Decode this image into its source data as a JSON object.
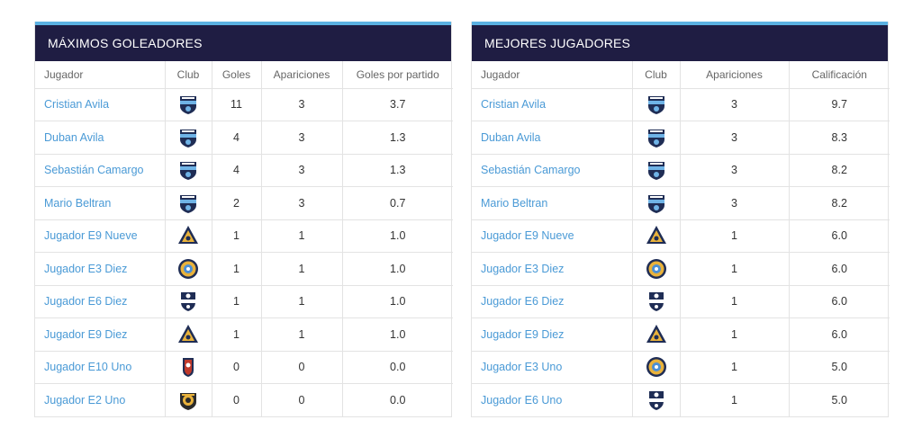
{
  "scorers": {
    "title": "MÁXIMOS GOLEADORES",
    "headers": [
      "Jugador",
      "Club",
      "Goles",
      "Apariciones",
      "Goles por partido"
    ],
    "rows": [
      {
        "player": "Cristian Avila",
        "crest": "shield-crest-icon",
        "goals": "11",
        "apps": "3",
        "gpm": "3.7"
      },
      {
        "player": "Duban Avila",
        "crest": "shield-crest-icon",
        "goals": "4",
        "apps": "3",
        "gpm": "1.3"
      },
      {
        "player": "Sebastián Camargo",
        "crest": "shield-crest-icon",
        "goals": "4",
        "apps": "3",
        "gpm": "1.3"
      },
      {
        "player": "Mario Beltran",
        "crest": "shield-crest-icon",
        "goals": "2",
        "apps": "3",
        "gpm": "0.7"
      },
      {
        "player": "Jugador E9 Nueve",
        "crest": "triangle-crest-icon",
        "goals": "1",
        "apps": "1",
        "gpm": "1.0"
      },
      {
        "player": "Jugador E3 Diez",
        "crest": "round-crest-icon",
        "goals": "1",
        "apps": "1",
        "gpm": "1.0"
      },
      {
        "player": "Jugador E6 Diez",
        "crest": "football-crest-icon",
        "goals": "1",
        "apps": "1",
        "gpm": "1.0"
      },
      {
        "player": "Jugador E9 Diez",
        "crest": "triangle-crest-icon",
        "goals": "1",
        "apps": "1",
        "gpm": "1.0"
      },
      {
        "player": "Jugador E10 Uno",
        "crest": "red-crest-icon",
        "goals": "0",
        "apps": "0",
        "gpm": "0.0"
      },
      {
        "player": "Jugador E2 Uno",
        "crest": "ball-crest-icon",
        "goals": "0",
        "apps": "0",
        "gpm": "0.0"
      }
    ]
  },
  "best": {
    "title": "MEJORES JUGADORES",
    "headers": [
      "Jugador",
      "Club",
      "Apariciones",
      "Calificación"
    ],
    "rows": [
      {
        "player": "Cristian Avila",
        "crest": "shield-crest-icon",
        "apps": "3",
        "rating": "9.7"
      },
      {
        "player": "Duban Avila",
        "crest": "shield-crest-icon",
        "apps": "3",
        "rating": "8.3"
      },
      {
        "player": "Sebastián Camargo",
        "crest": "shield-crest-icon",
        "apps": "3",
        "rating": "8.2"
      },
      {
        "player": "Mario Beltran",
        "crest": "shield-crest-icon",
        "apps": "3",
        "rating": "8.2"
      },
      {
        "player": "Jugador E9 Nueve",
        "crest": "triangle-crest-icon",
        "apps": "1",
        "rating": "6.0"
      },
      {
        "player": "Jugador E3 Diez",
        "crest": "round-crest-icon",
        "apps": "1",
        "rating": "6.0"
      },
      {
        "player": "Jugador E6 Diez",
        "crest": "football-crest-icon",
        "apps": "1",
        "rating": "6.0"
      },
      {
        "player": "Jugador E9 Diez",
        "crest": "triangle-crest-icon",
        "apps": "1",
        "rating": "6.0"
      },
      {
        "player": "Jugador E3 Uno",
        "crest": "round-crest-icon",
        "apps": "1",
        "rating": "5.0"
      },
      {
        "player": "Jugador E6 Uno",
        "crest": "football-crest-icon",
        "apps": "1",
        "rating": "5.0"
      }
    ]
  },
  "colors": {
    "header_bg": "#1f1d43",
    "header_accent": "#5bb1e2",
    "link": "#4a9ad6"
  }
}
